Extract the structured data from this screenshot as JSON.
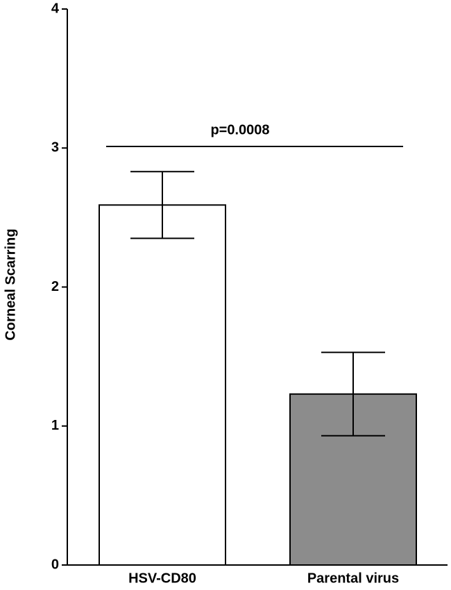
{
  "chart_data": {
    "type": "bar",
    "y_label": "Corneal Scarring",
    "annotation": "p=0.0008",
    "categories": [
      "HSV-CD80",
      "Parental virus"
    ],
    "values": [
      2.59,
      1.23
    ],
    "errors": [
      0.24,
      0.3
    ],
    "colors": [
      "#ffffff",
      "#8c8c8c"
    ],
    "ylim": [
      0,
      4
    ],
    "yticks": [
      0,
      1,
      2,
      3,
      4
    ]
  }
}
